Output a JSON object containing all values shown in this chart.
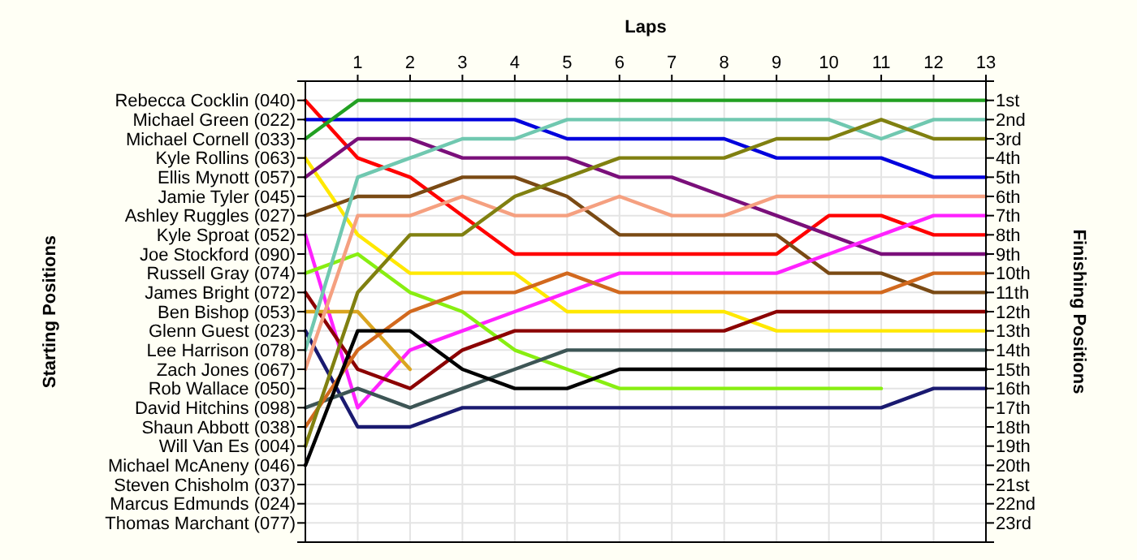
{
  "chart_data": {
    "type": "line",
    "xlabel": "Laps",
    "y2label": "Finishing Positions",
    "x": [
      0,
      1,
      2,
      3,
      4,
      5,
      6,
      7,
      8,
      9,
      10,
      11,
      12,
      13
    ],
    "xlim": [
      0,
      13
    ],
    "xticks": [
      1,
      2,
      3,
      4,
      5,
      6,
      7,
      8,
      9,
      10,
      11,
      12,
      13
    ],
    "y2lim": [
      24,
      0
    ],
    "y2ticks": [
      {
        "value": 1,
        "label": "1st"
      },
      {
        "value": 2,
        "label": "2nd"
      },
      {
        "value": 3,
        "label": "3rd"
      },
      {
        "value": 4,
        "label": "4th"
      },
      {
        "value": 5,
        "label": "5th"
      },
      {
        "value": 6,
        "label": "6th"
      },
      {
        "value": 7,
        "label": "7th"
      },
      {
        "value": 8,
        "label": "8th"
      },
      {
        "value": 9,
        "label": "9th"
      },
      {
        "value": 10,
        "label": "10th"
      },
      {
        "value": 11,
        "label": "11th"
      },
      {
        "value": 12,
        "label": "12th"
      },
      {
        "value": 13,
        "label": "13th"
      },
      {
        "value": 14,
        "label": "14th"
      },
      {
        "value": 15,
        "label": "15th"
      },
      {
        "value": 16,
        "label": "16th"
      },
      {
        "value": 17,
        "label": "17th"
      },
      {
        "value": 18,
        "label": "18th"
      },
      {
        "value": 19,
        "label": "19th"
      },
      {
        "value": 20,
        "label": "20th"
      },
      {
        "value": 21,
        "label": "21st"
      },
      {
        "value": 22,
        "label": "22nd"
      },
      {
        "value": 23,
        "label": "23rd"
      }
    ],
    "annotations": [
      "Rebecca Cocklin (040)",
      "Michael Green (022)",
      "Michael Cornell (033)",
      "Kyle Rollins (063)",
      "Ellis Mynott (057)",
      "Jamie Tyler (045)",
      "Ashley Ruggles (027)",
      "Kyle Sproat (052)",
      "Joe Stockford (090)",
      "Russell Gray (074)",
      "James Bright (072)",
      "Ben Bishop (053)",
      "Glenn Guest (023)",
      "Lee Harrison (078)",
      "Zach Jones (067)",
      "Rob Wallace (050)",
      "David Hitchins (098)",
      "Shaun Abbott (038)",
      "Will Van Es (004)",
      "Michael McAneny (046)",
      "Steven Chisholm (037)",
      "Marcus Edmunds (024)",
      "Thomas Marchant (077)",
      "Starting Positions"
    ],
    "grid": true,
    "marker": "none",
    "line_style": "solid",
    "series": [
      {
        "color": "#ff0000",
        "axis": "y2",
        "values": [
          1,
          4,
          5,
          7,
          9,
          9,
          9,
          9,
          9,
          9,
          7,
          7,
          8,
          8
        ]
      },
      {
        "color": "#0000dd",
        "axis": "y2",
        "values": [
          2,
          2,
          2,
          2,
          2,
          3,
          3,
          3,
          3,
          4,
          4,
          4,
          5,
          5
        ]
      },
      {
        "color": "#22a022",
        "axis": "y2",
        "values": [
          3,
          1,
          1,
          1,
          1,
          1,
          1,
          1,
          1,
          1,
          1,
          1,
          1,
          1
        ]
      },
      {
        "color": "#ffe800",
        "axis": "y2",
        "values": [
          4,
          8,
          10,
          10,
          10,
          12,
          12,
          12,
          12,
          13,
          13,
          13,
          13,
          13
        ]
      },
      {
        "color": "#7a0f7a",
        "axis": "y2",
        "values": [
          5,
          3,
          3,
          4,
          4,
          4,
          5,
          5,
          6,
          7,
          8,
          9,
          9,
          9
        ]
      },
      {
        "color": "#7a4a14",
        "axis": "y2",
        "values": [
          7,
          6,
          6,
          5,
          5,
          6,
          8,
          8,
          8,
          8,
          10,
          10,
          11,
          11
        ]
      },
      {
        "color": "#ff22ff",
        "axis": "y2",
        "values": [
          8,
          17,
          14,
          13,
          12,
          11,
          10,
          10,
          10,
          10,
          9,
          8,
          7,
          7
        ]
      },
      {
        "color": "#88ee11",
        "axis": "y2",
        "values": [
          10,
          9,
          11,
          12,
          14,
          15,
          16,
          16,
          16,
          16,
          16,
          16,
          null,
          null
        ]
      },
      {
        "color": "#8b0000",
        "axis": "y2",
        "values": [
          11,
          15,
          16,
          14,
          13,
          13,
          13,
          13,
          13,
          12,
          12,
          12,
          12,
          12
        ]
      },
      {
        "color": "#daa520",
        "axis": "y2",
        "values": [
          12,
          12,
          15,
          null,
          null,
          null,
          null,
          null,
          null,
          null,
          null,
          null,
          null,
          null
        ]
      },
      {
        "color": "#1a1a70",
        "axis": "y2",
        "values": [
          13,
          18,
          18,
          17,
          17,
          17,
          17,
          17,
          17,
          17,
          17,
          17,
          16,
          16
        ]
      },
      {
        "color": "#70c8b0",
        "axis": "y2",
        "values": [
          14,
          5,
          4,
          3,
          3,
          2,
          2,
          2,
          2,
          2,
          2,
          3,
          2,
          2
        ]
      },
      {
        "color": "#f5a080",
        "axis": "y2",
        "values": [
          15,
          7,
          7,
          6,
          7,
          7,
          6,
          7,
          7,
          6,
          6,
          6,
          6,
          6
        ]
      },
      {
        "color": "#3d5555",
        "axis": "y2",
        "values": [
          17,
          16,
          17,
          16,
          15,
          14,
          14,
          14,
          14,
          14,
          14,
          14,
          14,
          14
        ]
      },
      {
        "color": "#d2691e",
        "axis": "y2",
        "values": [
          18,
          14,
          12,
          11,
          11,
          10,
          11,
          11,
          11,
          11,
          11,
          11,
          10,
          10
        ]
      },
      {
        "color": "#808010",
        "axis": "y2",
        "values": [
          19,
          11,
          8,
          8,
          6,
          5,
          4,
          4,
          4,
          3,
          3,
          2,
          3,
          3
        ]
      },
      {
        "color": "#000000",
        "axis": "y2",
        "values": [
          20,
          13,
          13,
          15,
          16,
          16,
          15,
          15,
          15,
          15,
          15,
          15,
          15,
          15
        ]
      }
    ]
  }
}
